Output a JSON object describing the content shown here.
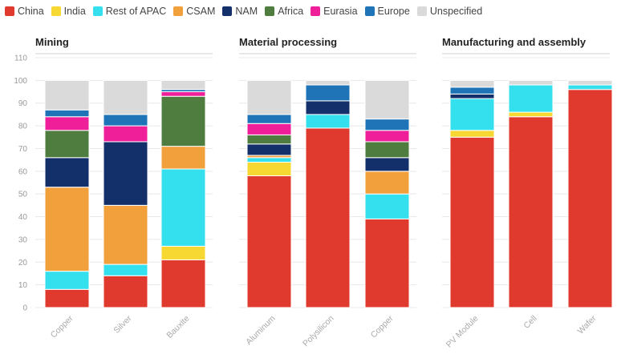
{
  "legend": [
    {
      "name": "China",
      "color": "#e03a2f"
    },
    {
      "name": "India",
      "color": "#f7d731"
    },
    {
      "name": "Rest of APAC",
      "color": "#34e0ee"
    },
    {
      "name": "CSAM",
      "color": "#f2a03c"
    },
    {
      "name": "NAM",
      "color": "#14306b"
    },
    {
      "name": "Africa",
      "color": "#4f7d3f"
    },
    {
      "name": "Eurasia",
      "color": "#ef1f9a"
    },
    {
      "name": "Europe",
      "color": "#1f74b8"
    },
    {
      "name": "Unspecified",
      "color": "#dadada"
    }
  ],
  "chart_data": [
    {
      "type": "bar",
      "stacked": true,
      "title": "Mining",
      "categories": [
        "Copper",
        "Silver",
        "Bauxite"
      ],
      "ylim": [
        0,
        110
      ],
      "yticks": [
        0,
        10,
        20,
        30,
        40,
        50,
        60,
        70,
        80,
        90,
        100,
        110
      ],
      "series": [
        {
          "name": "China",
          "values": [
            8,
            14,
            21
          ]
        },
        {
          "name": "India",
          "values": [
            0,
            0,
            6
          ]
        },
        {
          "name": "Rest of APAC",
          "values": [
            8,
            5,
            34
          ]
        },
        {
          "name": "CSAM",
          "values": [
            37,
            26,
            10
          ]
        },
        {
          "name": "NAM",
          "values": [
            13,
            28,
            0
          ]
        },
        {
          "name": "Africa",
          "values": [
            12,
            0,
            22
          ]
        },
        {
          "name": "Eurasia",
          "values": [
            6,
            7,
            2
          ]
        },
        {
          "name": "Europe",
          "values": [
            3,
            5,
            1
          ]
        },
        {
          "name": "Unspecified",
          "values": [
            13,
            15,
            4
          ]
        }
      ]
    },
    {
      "type": "bar",
      "stacked": true,
      "title": "Material processing",
      "categories": [
        "Aluminum",
        "Polysilicon",
        "Copper"
      ],
      "ylim": [
        0,
        110
      ],
      "series": [
        {
          "name": "China",
          "values": [
            58,
            79,
            39
          ]
        },
        {
          "name": "India",
          "values": [
            6,
            0,
            0
          ]
        },
        {
          "name": "Rest of APAC",
          "values": [
            2,
            6,
            11
          ]
        },
        {
          "name": "CSAM",
          "values": [
            1,
            0,
            10
          ]
        },
        {
          "name": "NAM",
          "values": [
            5,
            6,
            6
          ]
        },
        {
          "name": "Africa",
          "values": [
            4,
            0,
            7
          ]
        },
        {
          "name": "Eurasia",
          "values": [
            5,
            0,
            5
          ]
        },
        {
          "name": "Europe",
          "values": [
            4,
            7,
            5
          ]
        },
        {
          "name": "Unspecified",
          "values": [
            15,
            2,
            17
          ]
        }
      ]
    },
    {
      "type": "bar",
      "stacked": true,
      "title": "Manufacturing and assembly",
      "categories": [
        "PV Module",
        "Cell",
        "Wafer"
      ],
      "ylim": [
        0,
        110
      ],
      "series": [
        {
          "name": "China",
          "values": [
            75,
            84,
            96
          ]
        },
        {
          "name": "India",
          "values": [
            3,
            2,
            0
          ]
        },
        {
          "name": "Rest of APAC",
          "values": [
            14,
            12,
            2
          ]
        },
        {
          "name": "CSAM",
          "values": [
            0,
            0,
            0
          ]
        },
        {
          "name": "NAM",
          "values": [
            2,
            0,
            0
          ]
        },
        {
          "name": "Africa",
          "values": [
            0,
            0,
            0
          ]
        },
        {
          "name": "Eurasia",
          "values": [
            0,
            0,
            0
          ]
        },
        {
          "name": "Europe",
          "values": [
            3,
            0,
            0
          ]
        },
        {
          "name": "Unspecified",
          "values": [
            3,
            2,
            2
          ]
        }
      ]
    }
  ]
}
